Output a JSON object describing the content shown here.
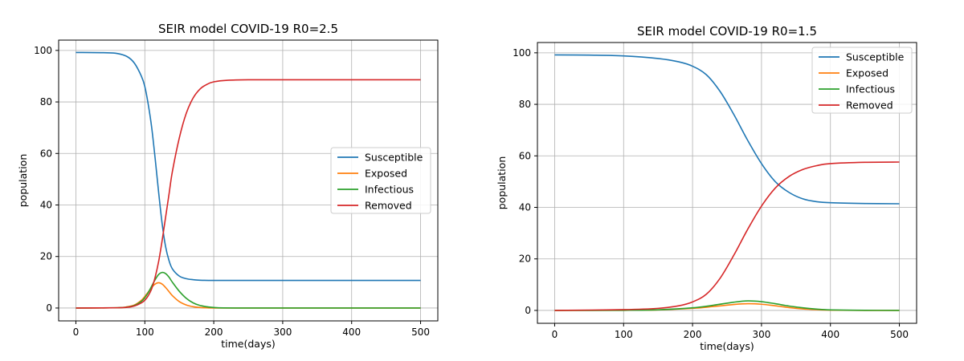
{
  "chart_data": [
    {
      "type": "line",
      "title": "SEIR model  COVID-19   R0=2.5",
      "xlabel": "time(days)",
      "ylabel": "population",
      "xlim": [
        -25,
        525
      ],
      "ylim": [
        -5,
        104
      ],
      "xticks": [
        0,
        100,
        200,
        300,
        400,
        500
      ],
      "yticks": [
        0,
        20,
        40,
        60,
        80,
        100
      ],
      "xtick_labels": [
        "0",
        "100",
        "200",
        "300",
        "400",
        "500"
      ],
      "ytick_labels": [
        "0",
        "20",
        "40",
        "60",
        "80",
        "100"
      ],
      "grid": true,
      "legend_position": "center-right",
      "series": [
        {
          "name": "Susceptible",
          "color": "#1f77b4",
          "x": [
            0,
            40,
            60,
            75,
            85,
            95,
            100,
            105,
            110,
            115,
            120,
            125,
            130,
            135,
            140,
            150,
            160,
            170,
            180,
            200,
            250,
            300,
            400,
            500
          ],
          "y": [
            99.2,
            99.1,
            98.8,
            97.5,
            95,
            90,
            86,
            79,
            70,
            58,
            45,
            33,
            24,
            18.5,
            15.2,
            12.4,
            11.4,
            11.0,
            10.8,
            10.7,
            10.7,
            10.7,
            10.7,
            10.7
          ]
        },
        {
          "name": "Exposed",
          "color": "#ff7f0e",
          "x": [
            0,
            60,
            75,
            85,
            95,
            100,
            105,
            110,
            115,
            120,
            125,
            130,
            135,
            140,
            150,
            160,
            170,
            180,
            200,
            250,
            500
          ],
          "y": [
            0,
            0.1,
            0.5,
            1.2,
            3,
            4.5,
            6.2,
            8,
            9.3,
            9.8,
            9.3,
            8,
            6.4,
            4.8,
            2.5,
            1.2,
            0.5,
            0.2,
            0,
            0,
            0
          ]
        },
        {
          "name": "Infectious",
          "color": "#2ca02c",
          "x": [
            0,
            60,
            75,
            85,
            95,
            100,
            105,
            110,
            115,
            120,
            125,
            130,
            135,
            140,
            150,
            160,
            170,
            180,
            200,
            250,
            500
          ],
          "y": [
            0,
            0.1,
            0.4,
            1.0,
            2.6,
            4,
            6,
            8.5,
            11,
            13,
            13.8,
            13.4,
            12,
            10,
            6.5,
            3.8,
            2,
            1,
            0.2,
            0,
            0
          ]
        },
        {
          "name": "Removed",
          "color": "#d62728",
          "x": [
            0,
            60,
            75,
            85,
            95,
            100,
            105,
            110,
            115,
            120,
            125,
            130,
            135,
            140,
            150,
            160,
            170,
            180,
            190,
            200,
            220,
            250,
            300,
            500
          ],
          "y": [
            0,
            0.1,
            0.3,
            0.8,
            2,
            3,
            4.8,
            7.5,
            12,
            18,
            26,
            35,
            44,
            53,
            66,
            75.5,
            81.5,
            85,
            86.8,
            87.8,
            88.4,
            88.6,
            88.6,
            88.6
          ]
        }
      ]
    },
    {
      "type": "line",
      "title": "SEIR model  COVID-19   R0=1.5",
      "xlabel": "time(days)",
      "ylabel": "population",
      "xlim": [
        -25,
        525
      ],
      "ylim": [
        -5,
        104
      ],
      "xticks": [
        0,
        100,
        200,
        300,
        400,
        500
      ],
      "yticks": [
        0,
        20,
        40,
        60,
        80,
        100
      ],
      "xtick_labels": [
        "0",
        "100",
        "200",
        "300",
        "400",
        "500"
      ],
      "ytick_labels": [
        "0",
        "20",
        "40",
        "60",
        "80",
        "100"
      ],
      "grid": true,
      "legend_position": "top-right",
      "series": [
        {
          "name": "Susceptible",
          "color": "#1f77b4",
          "x": [
            0,
            50,
            100,
            150,
            180,
            200,
            220,
            240,
            260,
            280,
            300,
            320,
            340,
            360,
            380,
            400,
            450,
            500
          ],
          "y": [
            99.2,
            99.1,
            98.8,
            97.8,
            96.5,
            94.8,
            91.5,
            85,
            76,
            66,
            57,
            50,
            45.8,
            43.3,
            42.2,
            41.8,
            41.5,
            41.4
          ]
        },
        {
          "name": "Exposed",
          "color": "#ff7f0e",
          "x": [
            0,
            100,
            150,
            200,
            230,
            260,
            280,
            300,
            320,
            340,
            360,
            380,
            400,
            450,
            500
          ],
          "y": [
            0,
            0.05,
            0.2,
            0.8,
            1.5,
            2.3,
            2.6,
            2.4,
            1.8,
            1.1,
            0.6,
            0.3,
            0.1,
            0,
            0
          ]
        },
        {
          "name": "Infectious",
          "color": "#2ca02c",
          "x": [
            0,
            100,
            150,
            200,
            230,
            260,
            280,
            300,
            320,
            340,
            360,
            380,
            400,
            450,
            500
          ],
          "y": [
            0,
            0.05,
            0.25,
            1.0,
            2.0,
            3.2,
            3.7,
            3.4,
            2.6,
            1.7,
            1.0,
            0.5,
            0.2,
            0.05,
            0
          ]
        },
        {
          "name": "Removed",
          "color": "#d62728",
          "x": [
            0,
            100,
            150,
            180,
            200,
            220,
            240,
            260,
            280,
            300,
            320,
            340,
            360,
            380,
            400,
            450,
            500
          ],
          "y": [
            0,
            0.3,
            0.8,
            1.8,
            3.3,
            6.3,
            12.5,
            21.5,
            31.5,
            40.5,
            47.5,
            52,
            54.7,
            56.2,
            57,
            57.5,
            57.6
          ]
        }
      ]
    }
  ]
}
